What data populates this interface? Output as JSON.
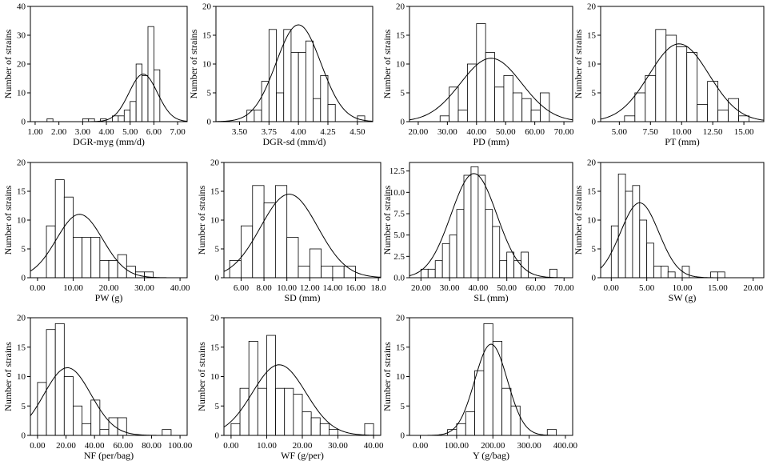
{
  "chart_data": [
    {
      "type": "bar",
      "id": "dgr-myg",
      "title": "",
      "xlabel": "DGR-myg (mm/d)",
      "ylabel": "Number of strains",
      "xlim": [
        0.8,
        7.4
      ],
      "ylim": [
        0,
        40
      ],
      "xticks": [
        1.0,
        2.0,
        3.0,
        4.0,
        5.0,
        6.0,
        7.0
      ],
      "xtick_labels": [
        "1.00",
        "2.00",
        "3.00",
        "4.00",
        "5.00",
        "6.00",
        "7.00"
      ],
      "yticks": [
        0,
        10,
        20,
        30,
        40
      ],
      "ytick_labels": [
        "0",
        "10",
        "20",
        "30",
        "40"
      ],
      "bin_width": 0.25,
      "bin_starts": [
        1.5,
        3.0,
        3.25,
        3.75,
        4.25,
        4.5,
        4.75,
        5.0,
        5.25,
        5.5,
        5.75,
        6.0
      ],
      "values": [
        1,
        1,
        1,
        1,
        2,
        2,
        4,
        7,
        20,
        16,
        33,
        18
      ],
      "fit": {
        "mean": 5.55,
        "sd": 0.6,
        "peak": 16.5
      }
    },
    {
      "type": "bar",
      "id": "dgr-sd",
      "title": "",
      "xlabel": "DGR-sd (mm/d)",
      "ylabel": "Number of strains",
      "xlim": [
        3.3,
        4.63
      ],
      "ylim": [
        0,
        20
      ],
      "xticks": [
        3.5,
        3.75,
        4.0,
        4.25,
        4.5
      ],
      "xtick_labels": [
        "3.50",
        "3.75",
        "4.00",
        "4.25",
        "4.50"
      ],
      "yticks": [
        0,
        5,
        10,
        15,
        20
      ],
      "ytick_labels": [
        "0",
        "5",
        "10",
        "15",
        "20"
      ],
      "bin_width": 0.0625,
      "bin_starts": [
        3.5625,
        3.625,
        3.6875,
        3.75,
        3.8125,
        3.875,
        3.9375,
        4.0,
        4.0625,
        4.125,
        4.1875,
        4.25,
        4.3125,
        4.375,
        4.4375,
        4.5
      ],
      "values": [
        2,
        2,
        7,
        16,
        5,
        16,
        12,
        12,
        14,
        4,
        8,
        3,
        0,
        0,
        0,
        1
      ],
      "fit": {
        "mean": 4.0,
        "sd": 0.19,
        "peak": 16.8
      }
    },
    {
      "type": "bar",
      "id": "pd",
      "title": "",
      "xlabel": "PD (mm)",
      "ylabel": "Number of strains",
      "xlim": [
        17,
        73
      ],
      "ylim": [
        0,
        20
      ],
      "xticks": [
        20,
        30,
        40,
        50,
        60,
        70
      ],
      "xtick_labels": [
        "20.00",
        "30.00",
        "40.00",
        "50.00",
        "60.00",
        "70.00"
      ],
      "yticks": [
        0,
        5,
        10,
        15,
        20
      ],
      "ytick_labels": [
        "0",
        "5",
        "10",
        "15",
        "20"
      ],
      "bin_width": 3.125,
      "bin_starts": [
        24.375,
        27.5,
        30.625,
        33.75,
        36.875,
        40.0,
        43.125,
        46.25,
        49.375,
        52.5,
        55.625,
        58.75,
        61.875,
        65.0
      ],
      "values": [
        0,
        1,
        6,
        2,
        10,
        17,
        12,
        6,
        8,
        5,
        4,
        2,
        5,
        0
      ],
      "fit": {
        "mean": 45,
        "sd": 10.5,
        "peak": 11
      }
    },
    {
      "type": "bar",
      "id": "pt",
      "title": "",
      "xlabel": "PT (mm)",
      "ylabel": "Number of strains",
      "xlim": [
        3.5,
        16.6
      ],
      "ylim": [
        0,
        20
      ],
      "xticks": [
        5.0,
        7.5,
        10.0,
        12.5,
        15.0
      ],
      "xtick_labels": [
        "5.00",
        "7.50",
        "10.00",
        "12.50",
        "15.00"
      ],
      "yticks": [
        0,
        5,
        10,
        15,
        20
      ],
      "ytick_labels": [
        "0",
        "5",
        "10",
        "15",
        "20"
      ],
      "bin_width": 0.8333,
      "bin_starts": [
        5.4167,
        6.25,
        7.0833,
        7.9167,
        8.75,
        9.5833,
        10.4167,
        11.25,
        12.0833,
        12.9167,
        13.75,
        14.5833,
        15.4167
      ],
      "values": [
        1,
        5,
        8,
        16,
        15,
        13,
        12,
        3,
        7,
        2,
        4,
        1,
        0
      ],
      "fit": {
        "mean": 9.8,
        "sd": 2.4,
        "peak": 13.5
      }
    },
    {
      "type": "bar",
      "id": "pw",
      "title": "",
      "xlabel": "PW (g)",
      "ylabel": "Number of strains",
      "xlim": [
        -2,
        42
      ],
      "ylim": [
        0,
        20
      ],
      "xticks": [
        0,
        10,
        20,
        30,
        40
      ],
      "xtick_labels": [
        "0.00",
        "10.00",
        "20.00",
        "30.00",
        "40.00"
      ],
      "yticks": [
        0,
        5,
        10,
        15,
        20
      ],
      "ytick_labels": [
        "0",
        "5",
        "10",
        "15",
        "20"
      ],
      "bin_width": 2.5,
      "bin_starts": [
        2.5,
        5.0,
        7.5,
        10.0,
        12.5,
        15.0,
        17.5,
        20.0,
        22.5,
        25.0,
        27.5,
        30.0
      ],
      "values": [
        9,
        17,
        14,
        7,
        7,
        7,
        3,
        3,
        4,
        2,
        1,
        1
      ],
      "fit": {
        "mean": 11.8,
        "sd": 6.5,
        "peak": 11
      }
    },
    {
      "type": "bar",
      "id": "sd",
      "title": "",
      "xlabel": "SD (mm)",
      "ylabel": "Number of strains",
      "xlim": [
        4.5,
        18.2
      ],
      "ylim": [
        0,
        20
      ],
      "xticks": [
        6,
        8,
        10,
        12,
        14,
        16,
        18
      ],
      "xtick_labels": [
        "6.00",
        "8.00",
        "10.00",
        "12.00",
        "14.00",
        "16.00",
        "18.0"
      ],
      "yticks": [
        0,
        5,
        10,
        15,
        20
      ],
      "ytick_labels": [
        "0",
        "5",
        "10",
        "15",
        "20"
      ],
      "bin_width": 1.0,
      "bin_starts": [
        5.0,
        6.0,
        7.0,
        8.0,
        9.0,
        10.0,
        11.0,
        12.0,
        13.0,
        14.0,
        15.0,
        16.0
      ],
      "values": [
        3,
        9,
        16,
        13,
        16,
        7,
        2,
        5,
        2,
        2,
        2,
        0
      ],
      "fit": {
        "mean": 10.2,
        "sd": 2.5,
        "peak": 14.5
      }
    },
    {
      "type": "bar",
      "id": "sl",
      "title": "",
      "xlabel": "SL (mm)",
      "ylabel": "Number of strains",
      "xlim": [
        16,
        73
      ],
      "ylim": [
        0,
        13.5
      ],
      "xticks": [
        20,
        30,
        40,
        50,
        60,
        70
      ],
      "xtick_labels": [
        "20.00",
        "30.00",
        "40.00",
        "50.00",
        "60.00",
        "70.00"
      ],
      "yticks": [
        0,
        2.5,
        5.0,
        7.5,
        10.0,
        12.5
      ],
      "ytick_labels": [
        "0.0",
        "2.5",
        "5.0",
        "7.5",
        "10.0",
        "12.5"
      ],
      "bin_width": 2.5,
      "bin_starts": [
        20,
        22.5,
        25,
        27.5,
        30,
        32.5,
        35,
        37.5,
        40,
        42.5,
        45,
        47.5,
        50,
        52.5,
        55,
        57.5,
        60,
        62.5,
        65
      ],
      "values": [
        1,
        1,
        2,
        4,
        5,
        8,
        12,
        13,
        12,
        8,
        6,
        2,
        3,
        2,
        3,
        0,
        0,
        0,
        1
      ],
      "fit": {
        "mean": 38.5,
        "sd": 8.0,
        "peak": 12.2
      }
    },
    {
      "type": "bar",
      "id": "sw",
      "title": "",
      "xlabel": "SW (g)",
      "ylabel": "Number of strains",
      "xlim": [
        -1.5,
        21.5
      ],
      "ylim": [
        0,
        20
      ],
      "xticks": [
        0,
        5,
        10,
        15,
        20
      ],
      "xtick_labels": [
        "0.00",
        "5.00",
        "10.00",
        "15.00",
        "20.00"
      ],
      "yticks": [
        0,
        5,
        10,
        15,
        20
      ],
      "ytick_labels": [
        "0",
        "5",
        "10",
        "15",
        "20"
      ],
      "bin_width": 1.0,
      "bin_starts": [
        0,
        1,
        2,
        3,
        4,
        5,
        6,
        7,
        8,
        9,
        10,
        11,
        12,
        13,
        14,
        15
      ],
      "values": [
        9,
        18,
        15,
        16,
        10,
        6,
        2,
        2,
        1,
        0,
        2,
        0,
        0,
        0,
        1,
        1
      ],
      "fit": {
        "mean": 4.0,
        "sd": 2.7,
        "peak": 13
      }
    },
    {
      "type": "bar",
      "id": "nf",
      "title": "",
      "xlabel": "NF (per/bag)",
      "ylabel": "Number of strains",
      "xlim": [
        -5,
        105
      ],
      "ylim": [
        0,
        20
      ],
      "xticks": [
        0,
        20,
        40,
        60,
        80,
        100
      ],
      "xtick_labels": [
        "0.00",
        "20.00",
        "40.00",
        "60.00",
        "80.00",
        "100.00"
      ],
      "yticks": [
        0,
        5,
        10,
        15,
        20
      ],
      "ytick_labels": [
        "0",
        "5",
        "10",
        "15",
        "20"
      ],
      "bin_width": 6.25,
      "bin_starts": [
        0,
        6.25,
        12.5,
        18.75,
        25,
        31.25,
        37.5,
        43.75,
        50,
        56.25,
        62.5,
        68.75,
        75,
        81.25,
        87.5
      ],
      "values": [
        9,
        18,
        19,
        10,
        5,
        2,
        6,
        1,
        3,
        3,
        0,
        0,
        0,
        0,
        1
      ],
      "fit": {
        "mean": 21,
        "sd": 16.5,
        "peak": 11.5
      }
    },
    {
      "type": "bar",
      "id": "wf",
      "title": "",
      "xlabel": "WF (g/per)",
      "ylabel": "Number of strains",
      "xlim": [
        -2,
        42
      ],
      "ylim": [
        0,
        20
      ],
      "xticks": [
        0,
        10,
        20,
        30,
        40
      ],
      "xtick_labels": [
        "0.00",
        "10.00",
        "20.00",
        "30.00",
        "40.00"
      ],
      "yticks": [
        0,
        5,
        10,
        15,
        20
      ],
      "ytick_labels": [
        "0",
        "5",
        "10",
        "15",
        "20"
      ],
      "bin_width": 2.5,
      "bin_starts": [
        0,
        2.5,
        5,
        7.5,
        10,
        12.5,
        15,
        17.5,
        20,
        22.5,
        25,
        27.5,
        30,
        32.5,
        35,
        37.5
      ],
      "values": [
        2,
        8,
        16,
        8,
        17,
        8,
        8,
        7,
        4,
        3,
        2,
        1,
        0,
        0,
        0,
        2
      ],
      "fit": {
        "mean": 13.5,
        "sd": 7.5,
        "peak": 12
      }
    },
    {
      "type": "bar",
      "id": "y",
      "title": "",
      "xlabel": "Y (g/bag)",
      "ylabel": "Number of strains",
      "xlim": [
        -30,
        420
      ],
      "ylim": [
        0,
        20
      ],
      "xticks": [
        0,
        100,
        200,
        300,
        400
      ],
      "xtick_labels": [
        "0.00",
        "100.00",
        "200.00",
        "300.00",
        "400.00"
      ],
      "yticks": [
        0,
        5,
        10,
        15,
        20
      ],
      "ytick_labels": [
        "0",
        "5",
        "10",
        "15",
        "20"
      ],
      "bin_width": 25,
      "bin_starts": [
        75,
        100,
        125,
        150,
        175,
        200,
        225,
        250,
        275,
        300,
        325,
        350
      ],
      "values": [
        1,
        2,
        4,
        11,
        19,
        16,
        8,
        5,
        0,
        0,
        0,
        1
      ],
      "fit": {
        "mean": 195,
        "sd": 45,
        "peak": 15.5
      }
    }
  ]
}
